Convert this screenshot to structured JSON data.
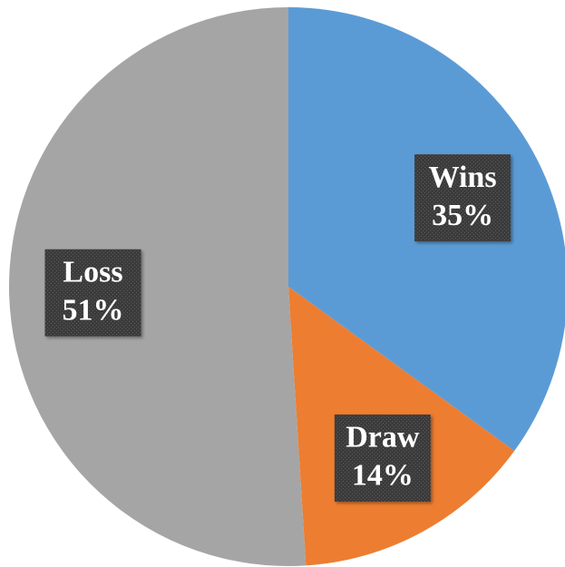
{
  "chart_data": {
    "type": "pie",
    "categories": [
      "Wins",
      "Draw",
      "Loss"
    ],
    "values": [
      35,
      14,
      51
    ],
    "value_labels": [
      "35%",
      "14%",
      "51%"
    ],
    "colors": [
      "#5b9bd5",
      "#ed7d31",
      "#a5a5a5"
    ]
  }
}
